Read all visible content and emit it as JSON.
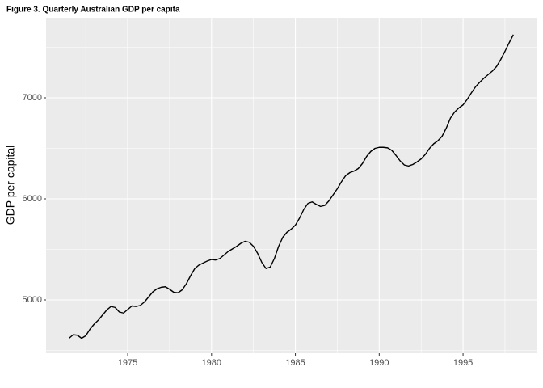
{
  "chart_data": {
    "type": "line",
    "title": "Figure 3. Quarterly Australian GDP per capita",
    "y_label": "GDP per capital",
    "x": [
      1971.5,
      1971.75,
      1972,
      1972.25,
      1972.5,
      1972.75,
      1973,
      1973.25,
      1973.5,
      1973.75,
      1974,
      1974.25,
      1974.5,
      1974.75,
      1975,
      1975.25,
      1975.5,
      1975.75,
      1976,
      1976.25,
      1976.5,
      1976.75,
      1977,
      1977.25,
      1977.5,
      1977.75,
      1978,
      1978.25,
      1978.5,
      1978.75,
      1979,
      1979.25,
      1979.5,
      1979.75,
      1980,
      1980.25,
      1980.5,
      1980.75,
      1981,
      1981.25,
      1981.5,
      1981.75,
      1982,
      1982.25,
      1982.5,
      1982.75,
      1983,
      1983.25,
      1983.5,
      1983.75,
      1984,
      1984.25,
      1984.5,
      1984.75,
      1985,
      1985.25,
      1985.5,
      1985.75,
      1986,
      1986.25,
      1986.5,
      1986.75,
      1987,
      1987.25,
      1987.5,
      1987.75,
      1988,
      1988.25,
      1988.5,
      1988.75,
      1989,
      1989.25,
      1989.5,
      1989.75,
      1990,
      1990.25,
      1990.5,
      1990.75,
      1991,
      1991.25,
      1991.5,
      1991.75,
      1992,
      1992.25,
      1992.5,
      1992.75,
      1993,
      1993.25,
      1993.5,
      1993.75,
      1994,
      1994.25,
      1994.5,
      1994.75,
      1995,
      1995.25,
      1995.5,
      1995.75,
      1996,
      1996.25,
      1996.5,
      1996.75,
      1997,
      1997.25,
      1997.5,
      1997.75,
      1998
    ],
    "values": [
      4620,
      4655,
      4650,
      4620,
      4645,
      4710,
      4760,
      4800,
      4850,
      4900,
      4935,
      4925,
      4880,
      4870,
      4905,
      4940,
      4935,
      4945,
      4980,
      5030,
      5080,
      5110,
      5125,
      5130,
      5105,
      5075,
      5070,
      5100,
      5160,
      5240,
      5310,
      5345,
      5365,
      5385,
      5400,
      5395,
      5410,
      5445,
      5480,
      5505,
      5530,
      5560,
      5580,
      5570,
      5530,
      5460,
      5370,
      5310,
      5325,
      5410,
      5530,
      5620,
      5670,
      5700,
      5740,
      5810,
      5895,
      5955,
      5970,
      5945,
      5925,
      5935,
      5980,
      6040,
      6100,
      6170,
      6230,
      6260,
      6275,
      6300,
      6350,
      6420,
      6470,
      6500,
      6510,
      6510,
      6505,
      6480,
      6430,
      6375,
      6335,
      6325,
      6340,
      6365,
      6395,
      6440,
      6500,
      6545,
      6575,
      6620,
      6700,
      6800,
      6860,
      6900,
      6930,
      6985,
      7050,
      7110,
      7155,
      7195,
      7230,
      7265,
      7310,
      7380,
      7460,
      7545,
      7625
    ],
    "color": "#000000",
    "xlim": [
      1970.13,
      1999.43
    ],
    "xticks": [
      1975,
      1980,
      1985,
      1990,
      1995
    ],
    "ylim": [
      4472,
      7792
    ],
    "yticks": [
      5000,
      6000,
      7000
    ],
    "grid": true
  }
}
